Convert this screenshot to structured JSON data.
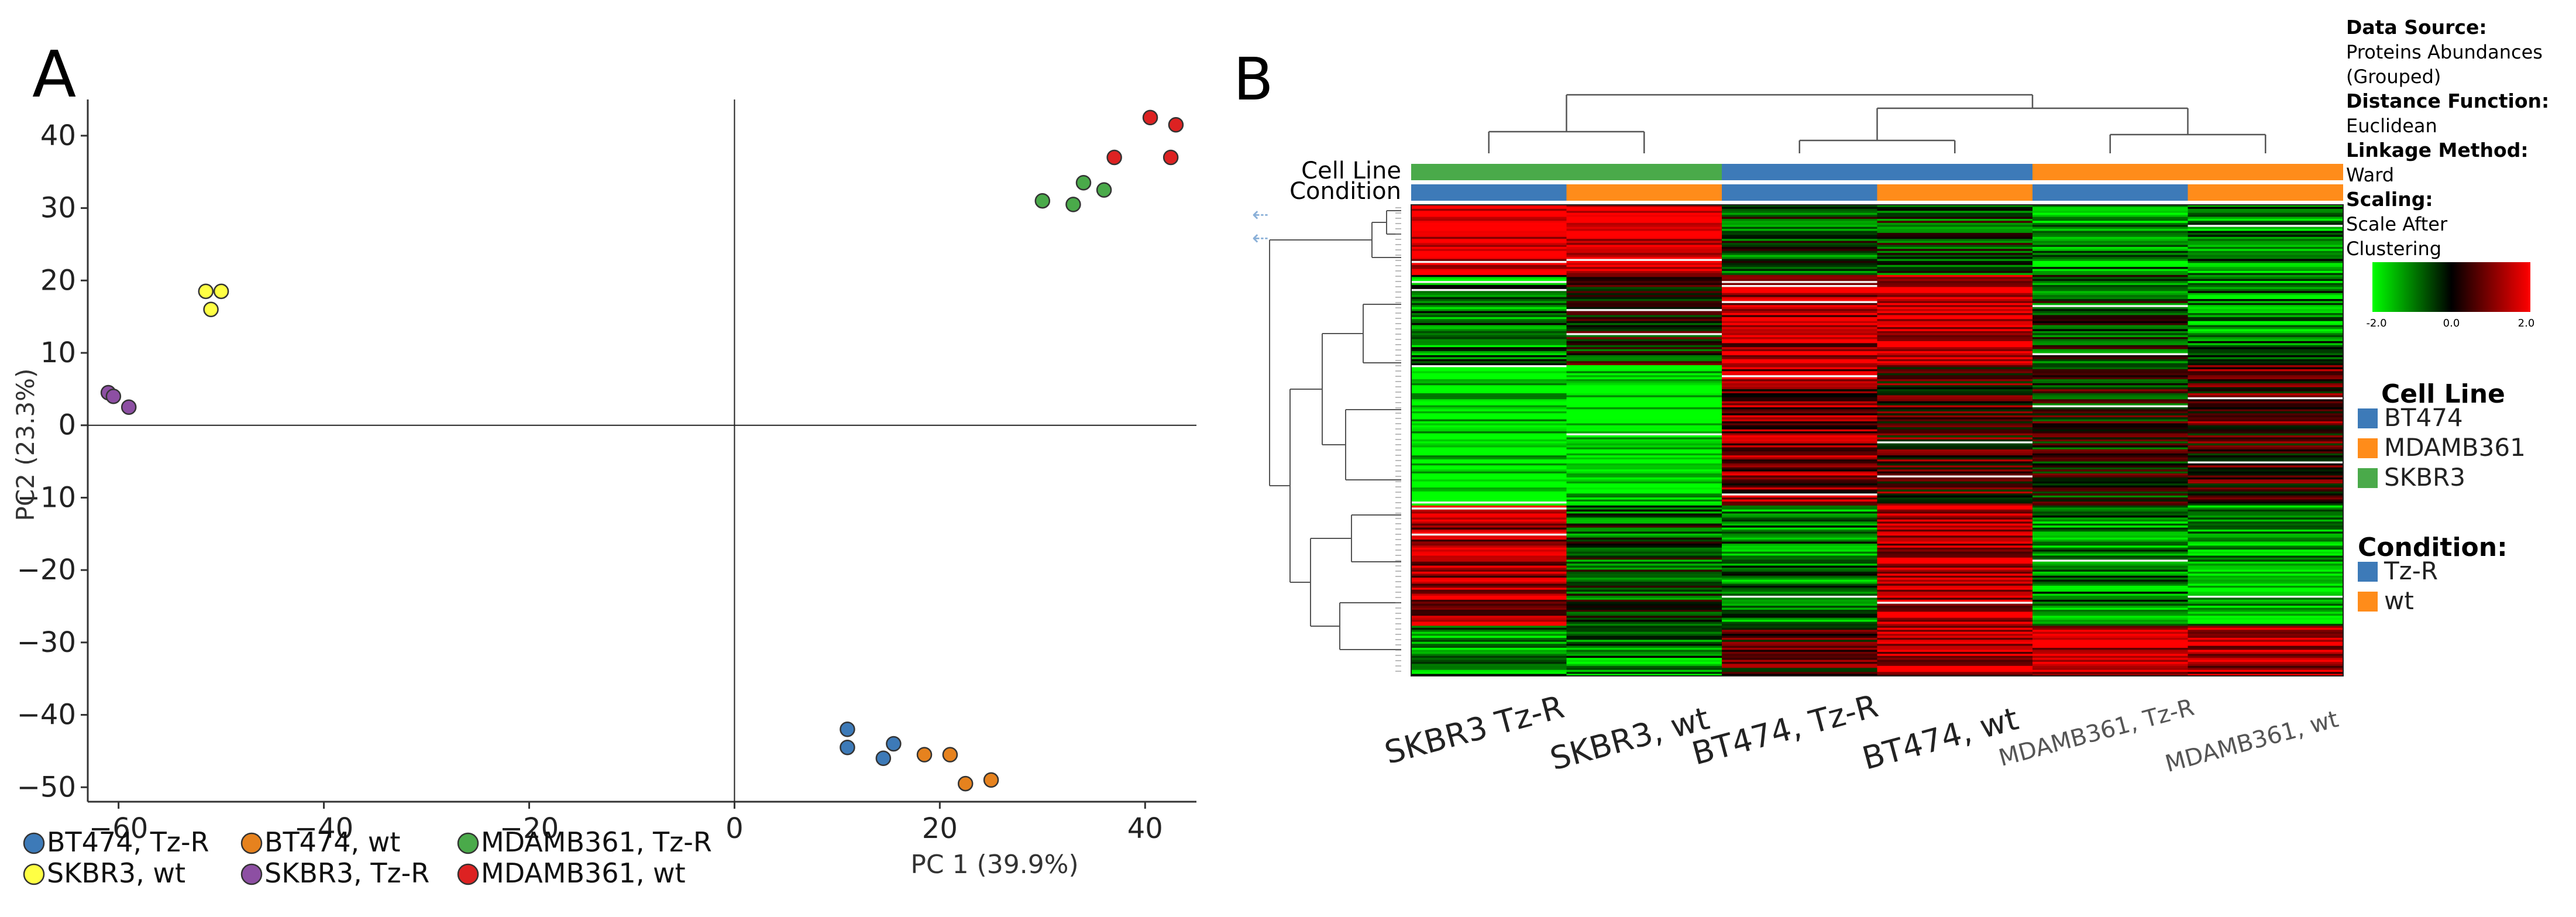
{
  "figure_labels": {
    "a": "A",
    "b": "B"
  },
  "chart_data": [
    {
      "type": "scatter",
      "panel": "A",
      "xlabel": "PC 1 (39.9%)",
      "ylabel": "PC2 (23.3%)",
      "xlim": [
        -63,
        45
      ],
      "ylim": [
        -52,
        45
      ],
      "xticks": [
        -60,
        -40,
        -20,
        0,
        20,
        40
      ],
      "yticks": [
        40,
        30,
        20,
        10,
        0,
        -10,
        -20,
        -30,
        -40,
        -50
      ],
      "xtick_labels": [
        "−60",
        "−40",
        "−20",
        "0",
        "20",
        "40"
      ],
      "ytick_labels": [
        "40",
        "30",
        "20",
        "10",
        "0",
        "−10",
        "−20",
        "−30",
        "−40",
        "−50"
      ],
      "zero_lines": true,
      "legend_position": "bottom-left",
      "series": [
        {
          "name": "BT474, Tz-R",
          "color": "#3d7ab8",
          "points": [
            [
              11,
              -42
            ],
            [
              11,
              -44.5
            ],
            [
              15.5,
              -44
            ],
            [
              14.5,
              -46
            ]
          ]
        },
        {
          "name": "BT474, wt",
          "color": "#e6821e",
          "points": [
            [
              18.5,
              -45.5
            ],
            [
              21,
              -45.5
            ],
            [
              22.5,
              -49.5
            ],
            [
              25,
              -49
            ]
          ]
        },
        {
          "name": "MDAMB361, Tz-R",
          "color": "#4aaa4a",
          "points": [
            [
              30,
              31
            ],
            [
              33,
              30.5
            ],
            [
              34,
              33.5
            ],
            [
              36,
              32.5
            ]
          ]
        },
        {
          "name": "SKBR3, wt",
          "color": "#ffff44",
          "points": [
            [
              -51.5,
              18.5
            ],
            [
              -50,
              18.5
            ],
            [
              -51,
              16
            ]
          ]
        },
        {
          "name": "SKBR3, Tz-R",
          "color": "#8d4fa3",
          "points": [
            [
              -61,
              4.5
            ],
            [
              -60.5,
              4
            ],
            [
              -59,
              2.5
            ]
          ]
        },
        {
          "name": "MDAMB361, wt",
          "color": "#dd2222",
          "points": [
            [
              37,
              37
            ],
            [
              40.5,
              42.5
            ],
            [
              42.5,
              37
            ],
            [
              43,
              41.5
            ]
          ]
        }
      ]
    },
    {
      "type": "heatmap",
      "panel": "B",
      "columns": [
        "SKBR3 Tz-R",
        "SKBR3, wt",
        "BT474, Tz-R",
        "BT474, wt",
        "MDAMB361, Tz-R",
        "MDAMB361, wt"
      ],
      "annotation_rows": [
        {
          "label": "Cell Line",
          "colors": [
            "#4aaa4a",
            "#4aaa4a",
            "#3d7ab8",
            "#3d7ab8",
            "#ff8c1a",
            "#ff8c1a"
          ]
        },
        {
          "label": "Condition",
          "colors": [
            "#3d7ab8",
            "#ff8c1a",
            "#3d7ab8",
            "#ff8c1a",
            "#3d7ab8",
            "#ff8c1a"
          ]
        }
      ],
      "color_scale": {
        "min": -2.0,
        "mid": 0.0,
        "max": 2.0,
        "min_label": "-2.0",
        "mid_label": "0.0",
        "max_label": "2.0",
        "low_color": "#00ff00",
        "mid_color": "#000000",
        "high_color": "#ff0000"
      },
      "row_blocks": [
        {
          "rows": 35,
          "pattern": [
            2,
            2,
            -0.5,
            -0.3,
            -1,
            -1
          ]
        },
        {
          "rows": 45,
          "pattern": [
            -1,
            0,
            1.5,
            1.8,
            -0.5,
            -1
          ]
        },
        {
          "rows": 70,
          "pattern": [
            -2,
            -2,
            1,
            0.5,
            0,
            0.5
          ]
        },
        {
          "rows": 60,
          "pattern": [
            1.5,
            -0.5,
            -1,
            1.5,
            -1,
            -1.5
          ]
        },
        {
          "rows": 25,
          "pattern": [
            -1,
            -1,
            0.5,
            1.5,
            1.8,
            1.5
          ]
        }
      ],
      "info": {
        "data_source_title": "Data Source:",
        "data_source_value": "Proteins Abundances (Grouped)",
        "distance_title": "Distance Function:",
        "distance_value": "Euclidean",
        "linkage_title": "Linkage Method:",
        "linkage_value": "Ward",
        "scaling_title": "Scaling:",
        "scaling_value": "Scale After Clustering"
      },
      "legends": {
        "cell_line_title": "Cell Line",
        "cell_line_items": [
          {
            "label": "BT474",
            "color": "#3d7ab8"
          },
          {
            "label": "MDAMB361",
            "color": "#ff8c1a"
          },
          {
            "label": "SKBR3",
            "color": "#4aaa4a"
          }
        ],
        "condition_title": "Condition:",
        "condition_items": [
          {
            "label": "Tz-R",
            "color": "#3d7ab8"
          },
          {
            "label": "wt",
            "color": "#ff8c1a"
          }
        ]
      }
    }
  ]
}
